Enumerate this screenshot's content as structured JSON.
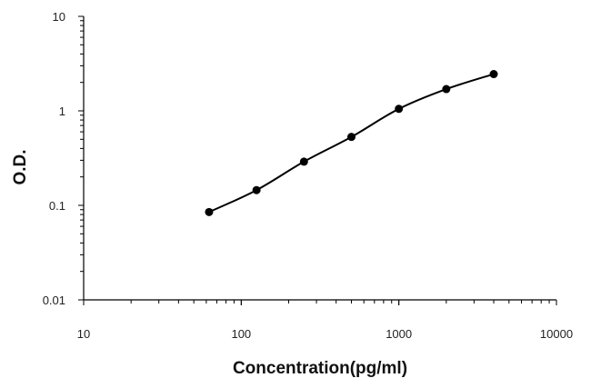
{
  "chart_data": {
    "type": "scatter",
    "xscale": "log",
    "yscale": "log",
    "xlim": [
      10,
      10000
    ],
    "ylim": [
      0.01,
      10
    ],
    "xlabel": "Concentration(pg/ml)",
    "ylabel": "O.D.",
    "x_ticks": [
      "10",
      "100",
      "1000",
      "10000"
    ],
    "y_ticks": [
      "0.01",
      "0.1",
      "1",
      "10"
    ],
    "grid": false,
    "legend": "none",
    "series": [
      {
        "x": [
          62.5,
          125,
          250,
          500,
          1000,
          2000,
          4000
        ],
        "y": [
          0.085,
          0.145,
          0.29,
          0.53,
          1.05,
          1.7,
          2.45
        ]
      }
    ],
    "colors": {
      "line": "#000000",
      "axis": "#000000"
    }
  }
}
